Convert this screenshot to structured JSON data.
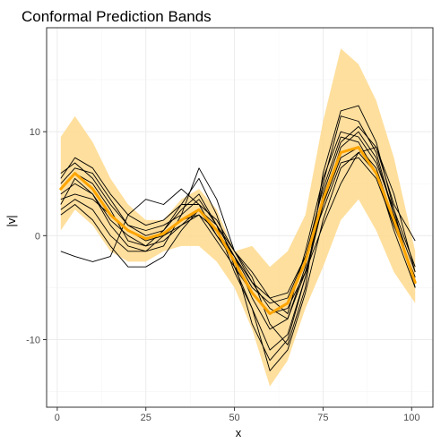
{
  "chart_data": {
    "type": "line",
    "title": "Conformal Prediction Bands",
    "xlabel": "x",
    "ylabel": "|v|",
    "xlim": [
      -3,
      106
    ],
    "ylim": [
      -16.5,
      20
    ],
    "x_ticks": [
      0,
      25,
      50,
      75,
      100
    ],
    "x_tick_labels": [
      "0",
      "25",
      "50",
      "75",
      "100"
    ],
    "y_ticks": [
      -10,
      0,
      10
    ],
    "y_tick_labels": [
      "-10",
      "0",
      "10"
    ],
    "grid": true,
    "legend": "none",
    "colors": {
      "band": "#ffd98c",
      "mean": "#ffa500",
      "curves": "#000000",
      "panel_border": "#333333",
      "grid_major": "#ebebeb",
      "grid_minor": "#f5f5f5"
    },
    "band": {
      "x": [
        1,
        5,
        10,
        15,
        20,
        25,
        30,
        35,
        40,
        45,
        50,
        55,
        60,
        65,
        70,
        75,
        80,
        85,
        90,
        95,
        101
      ],
      "upper": [
        9.5,
        11.5,
        9.0,
        5.5,
        3.0,
        1.5,
        1.5,
        3.5,
        4.5,
        2.5,
        -1.5,
        -1.0,
        -3.0,
        -1.5,
        2.0,
        11.0,
        18.0,
        16.5,
        13.0,
        7.5,
        -1.5
      ],
      "lower": [
        0.5,
        2.5,
        1.0,
        -1.5,
        -2.5,
        -2.5,
        -1.5,
        -1.0,
        -1.0,
        -2.5,
        -5.0,
        -9.0,
        -14.5,
        -12.0,
        -7.0,
        -3.0,
        1.5,
        3.5,
        0.5,
        -3.5,
        -6.5
      ]
    },
    "mean": {
      "x": [
        1,
        5,
        10,
        15,
        20,
        25,
        30,
        35,
        40,
        45,
        50,
        55,
        60,
        65,
        70,
        75,
        80,
        85,
        90,
        95,
        101
      ],
      "y": [
        4.5,
        6.0,
        4.5,
        2.0,
        0.5,
        -0.3,
        0.2,
        1.5,
        2.5,
        0.5,
        -2.5,
        -5.5,
        -7.5,
        -6.5,
        -2.5,
        3.5,
        8.0,
        8.5,
        6.0,
        1.5,
        -4.5
      ]
    },
    "series": [
      {
        "x": [
          1,
          5,
          10,
          15,
          20,
          25,
          30,
          35,
          40,
          45,
          50,
          55,
          60,
          65,
          70,
          75,
          80,
          85,
          90,
          95,
          101
        ],
        "y": [
          -1.5,
          -2.0,
          -2.5,
          -2.0,
          2.0,
          3.5,
          3.0,
          4.5,
          3.0,
          0.0,
          -2.5,
          -8.5,
          -12.0,
          -10.0,
          -4.0,
          4.0,
          9.0,
          10.5,
          8.5,
          3.0,
          -0.5
        ]
      },
      {
        "x": [
          1,
          5,
          10,
          15,
          20,
          25,
          30,
          35,
          40,
          45,
          50,
          55,
          60,
          65,
          70,
          75,
          80,
          85,
          90,
          95,
          101
        ],
        "y": [
          6.0,
          7.0,
          5.5,
          3.0,
          1.0,
          0.0,
          0.5,
          3.0,
          5.5,
          2.0,
          -3.0,
          -5.5,
          -7.5,
          -7.0,
          -3.5,
          1.0,
          5.0,
          8.0,
          8.5,
          4.0,
          -3.5
        ]
      },
      {
        "x": [
          1,
          5,
          10,
          15,
          20,
          25,
          30,
          35,
          40,
          45,
          50,
          55,
          60,
          65,
          70,
          75,
          80,
          85,
          90,
          95,
          101
        ],
        "y": [
          3.0,
          5.5,
          4.0,
          1.5,
          0.0,
          -1.0,
          -0.5,
          1.0,
          2.5,
          0.0,
          -2.0,
          -4.5,
          -6.0,
          -5.5,
          -2.0,
          4.5,
          9.5,
          9.0,
          6.0,
          1.0,
          -4.0
        ]
      },
      {
        "x": [
          1,
          5,
          10,
          15,
          20,
          25,
          30,
          35,
          40,
          45,
          50,
          55,
          60,
          65,
          70,
          75,
          80,
          85,
          90,
          95,
          101
        ],
        "y": [
          5.0,
          6.5,
          6.0,
          3.5,
          1.0,
          0.5,
          1.0,
          2.0,
          3.5,
          1.0,
          -2.0,
          -6.0,
          -9.0,
          -8.0,
          -3.0,
          5.0,
          11.5,
          11.0,
          8.0,
          2.0,
          -5.0
        ]
      },
      {
        "x": [
          1,
          5,
          10,
          15,
          20,
          25,
          30,
          35,
          40,
          45,
          50,
          55,
          60,
          65,
          70,
          75,
          80,
          85,
          90,
          95,
          101
        ],
        "y": [
          2.5,
          3.5,
          2.5,
          0.0,
          -1.5,
          -1.5,
          0.0,
          1.0,
          2.0,
          -0.5,
          -3.0,
          -7.0,
          -11.0,
          -9.5,
          -4.0,
          3.0,
          7.5,
          8.5,
          6.5,
          1.5,
          -4.5
        ]
      },
      {
        "x": [
          1,
          5,
          10,
          15,
          20,
          25,
          30,
          35,
          40,
          45,
          50,
          55,
          60,
          65,
          70,
          75,
          80,
          85,
          90,
          95,
          101
        ],
        "y": [
          4.0,
          5.0,
          4.0,
          1.0,
          -1.0,
          -1.5,
          -1.0,
          2.0,
          6.5,
          3.5,
          -1.5,
          -4.0,
          -8.5,
          -10.5,
          -5.0,
          6.0,
          12.0,
          12.5,
          9.0,
          2.5,
          -5.0
        ]
      },
      {
        "x": [
          1,
          5,
          10,
          15,
          20,
          25,
          30,
          35,
          40,
          45,
          50,
          55,
          60,
          65,
          70,
          75,
          80,
          85,
          90,
          95,
          101
        ],
        "y": [
          3.5,
          4.0,
          3.5,
          2.0,
          0.5,
          -0.5,
          0.0,
          1.5,
          2.0,
          0.5,
          -2.0,
          -5.0,
          -6.5,
          -6.0,
          -2.0,
          2.5,
          7.0,
          7.5,
          5.5,
          1.0,
          -4.0
        ]
      },
      {
        "x": [
          1,
          5,
          10,
          15,
          20,
          25,
          30,
          35,
          40,
          45,
          50,
          55,
          60,
          65,
          70,
          75,
          80,
          85,
          90,
          95,
          101
        ],
        "y": [
          5.5,
          7.5,
          6.5,
          4.0,
          2.0,
          1.0,
          1.5,
          3.0,
          3.0,
          1.5,
          -1.5,
          -3.5,
          -6.0,
          -7.5,
          -1.5,
          5.5,
          10.0,
          9.5,
          7.0,
          2.5,
          -3.0
        ]
      },
      {
        "x": [
          1,
          5,
          10,
          15,
          20,
          25,
          30,
          35,
          40,
          45,
          50,
          55,
          60,
          65,
          70,
          75,
          80,
          85,
          90,
          95,
          101
        ],
        "y": [
          2.0,
          3.0,
          1.5,
          -1.0,
          -3.0,
          -3.0,
          -2.0,
          0.5,
          2.5,
          1.0,
          -1.5,
          -4.5,
          -7.0,
          -8.0,
          -3.5,
          3.0,
          8.5,
          10.0,
          7.5,
          2.0,
          -3.5
        ]
      },
      {
        "x": [
          1,
          5,
          10,
          15,
          20,
          25,
          30,
          35,
          40,
          45,
          50,
          55,
          60,
          65,
          70,
          75,
          80,
          85,
          90,
          95,
          101
        ],
        "y": [
          4.5,
          6.0,
          5.0,
          2.5,
          -0.5,
          -1.0,
          0.5,
          2.5,
          4.0,
          1.0,
          -3.5,
          -7.0,
          -13.0,
          -11.0,
          -5.5,
          1.5,
          6.5,
          8.0,
          6.0,
          0.5,
          -5.0
        ]
      }
    ]
  }
}
